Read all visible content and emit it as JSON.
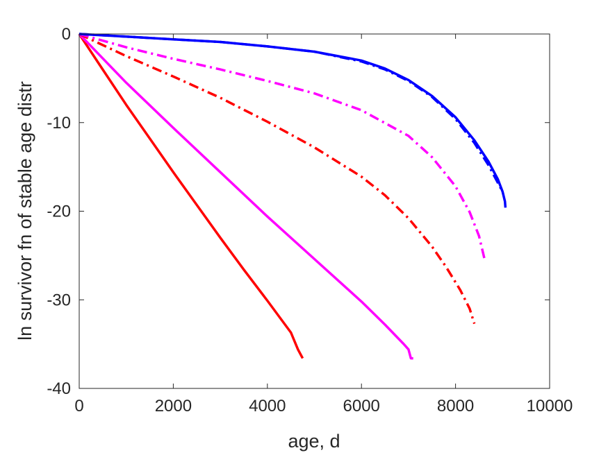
{
  "chart_data": {
    "type": "line",
    "title": "",
    "xlabel": "age, d",
    "ylabel": "ln survivor fn of stable age distr",
    "xlim": [
      0,
      10000
    ],
    "ylim": [
      -40,
      0
    ],
    "xticks": [
      0,
      2000,
      4000,
      6000,
      8000,
      10000
    ],
    "xtick_labels": [
      "0",
      "2000",
      "4000",
      "6000",
      "8000",
      "10000"
    ],
    "yticks": [
      0,
      -10,
      -20,
      -30,
      -40
    ],
    "ytick_labels": [
      "0",
      "-10",
      "-20",
      "-30",
      "-40"
    ],
    "grid": false,
    "legend": "none",
    "series": [
      {
        "color": "#ff0000",
        "style": "solid",
        "x": [
          0,
          500,
          1000,
          1500,
          2000,
          2500,
          3000,
          3500,
          4000,
          4500,
          4650,
          4750
        ],
        "y": [
          0,
          -4.0,
          -8.0,
          -11.8,
          -15.6,
          -19.3,
          -23.0,
          -26.6,
          -30.1,
          -33.7,
          -35.6,
          -36.6
        ]
      },
      {
        "color": "#ff00ff",
        "style": "solid",
        "x": [
          0,
          1000,
          2000,
          3000,
          4000,
          5000,
          6000,
          6500,
          6900,
          7000,
          7050,
          7100
        ],
        "y": [
          0,
          -5.5,
          -10.6,
          -15.6,
          -20.6,
          -25.4,
          -30.2,
          -32.8,
          -35.0,
          -35.6,
          -36.6,
          -36.6
        ]
      },
      {
        "color": "#ff0000",
        "style": "dashdot",
        "x": [
          0,
          1000,
          2000,
          3000,
          4000,
          5000,
          6000,
          6500,
          7000,
          7500,
          7800,
          8100,
          8300,
          8400
        ],
        "y": [
          0,
          -2.5,
          -4.8,
          -7.2,
          -9.9,
          -12.8,
          -16.1,
          -18.2,
          -20.8,
          -24.0,
          -26.3,
          -28.9,
          -31.0,
          -32.7
        ]
      },
      {
        "color": "#ff00ff",
        "style": "dashdot",
        "x": [
          0,
          1000,
          2000,
          3000,
          4000,
          5000,
          6000,
          7000,
          7500,
          8000,
          8300,
          8500,
          8620
        ],
        "y": [
          0,
          -1.5,
          -2.8,
          -4.0,
          -5.3,
          -6.7,
          -8.6,
          -11.5,
          -13.9,
          -17.2,
          -20.1,
          -22.8,
          -25.5
        ]
      },
      {
        "color": "#0000ff",
        "style": "dashdot",
        "x": [
          0,
          1000,
          2000,
          3000,
          4000,
          5000,
          6000,
          6500,
          7000,
          7500,
          8000,
          8400,
          8700,
          8900,
          9000
        ],
        "y": [
          0,
          -0.3,
          -0.6,
          -0.9,
          -1.4,
          -2.0,
          -3.1,
          -4.0,
          -5.3,
          -7.1,
          -9.6,
          -12.3,
          -14.8,
          -16.8,
          -17.8
        ]
      },
      {
        "color": "#0000ff",
        "style": "solid",
        "x": [
          0,
          1000,
          2000,
          3000,
          4000,
          5000,
          6000,
          6500,
          7000,
          7500,
          8000,
          8400,
          8700,
          8900,
          9000,
          9050,
          9060
        ],
        "y": [
          0,
          -0.3,
          -0.6,
          -0.9,
          -1.4,
          -2.0,
          -3.0,
          -3.9,
          -5.2,
          -7.0,
          -9.4,
          -12.0,
          -14.4,
          -16.4,
          -17.8,
          -18.9,
          -19.6
        ]
      }
    ]
  }
}
